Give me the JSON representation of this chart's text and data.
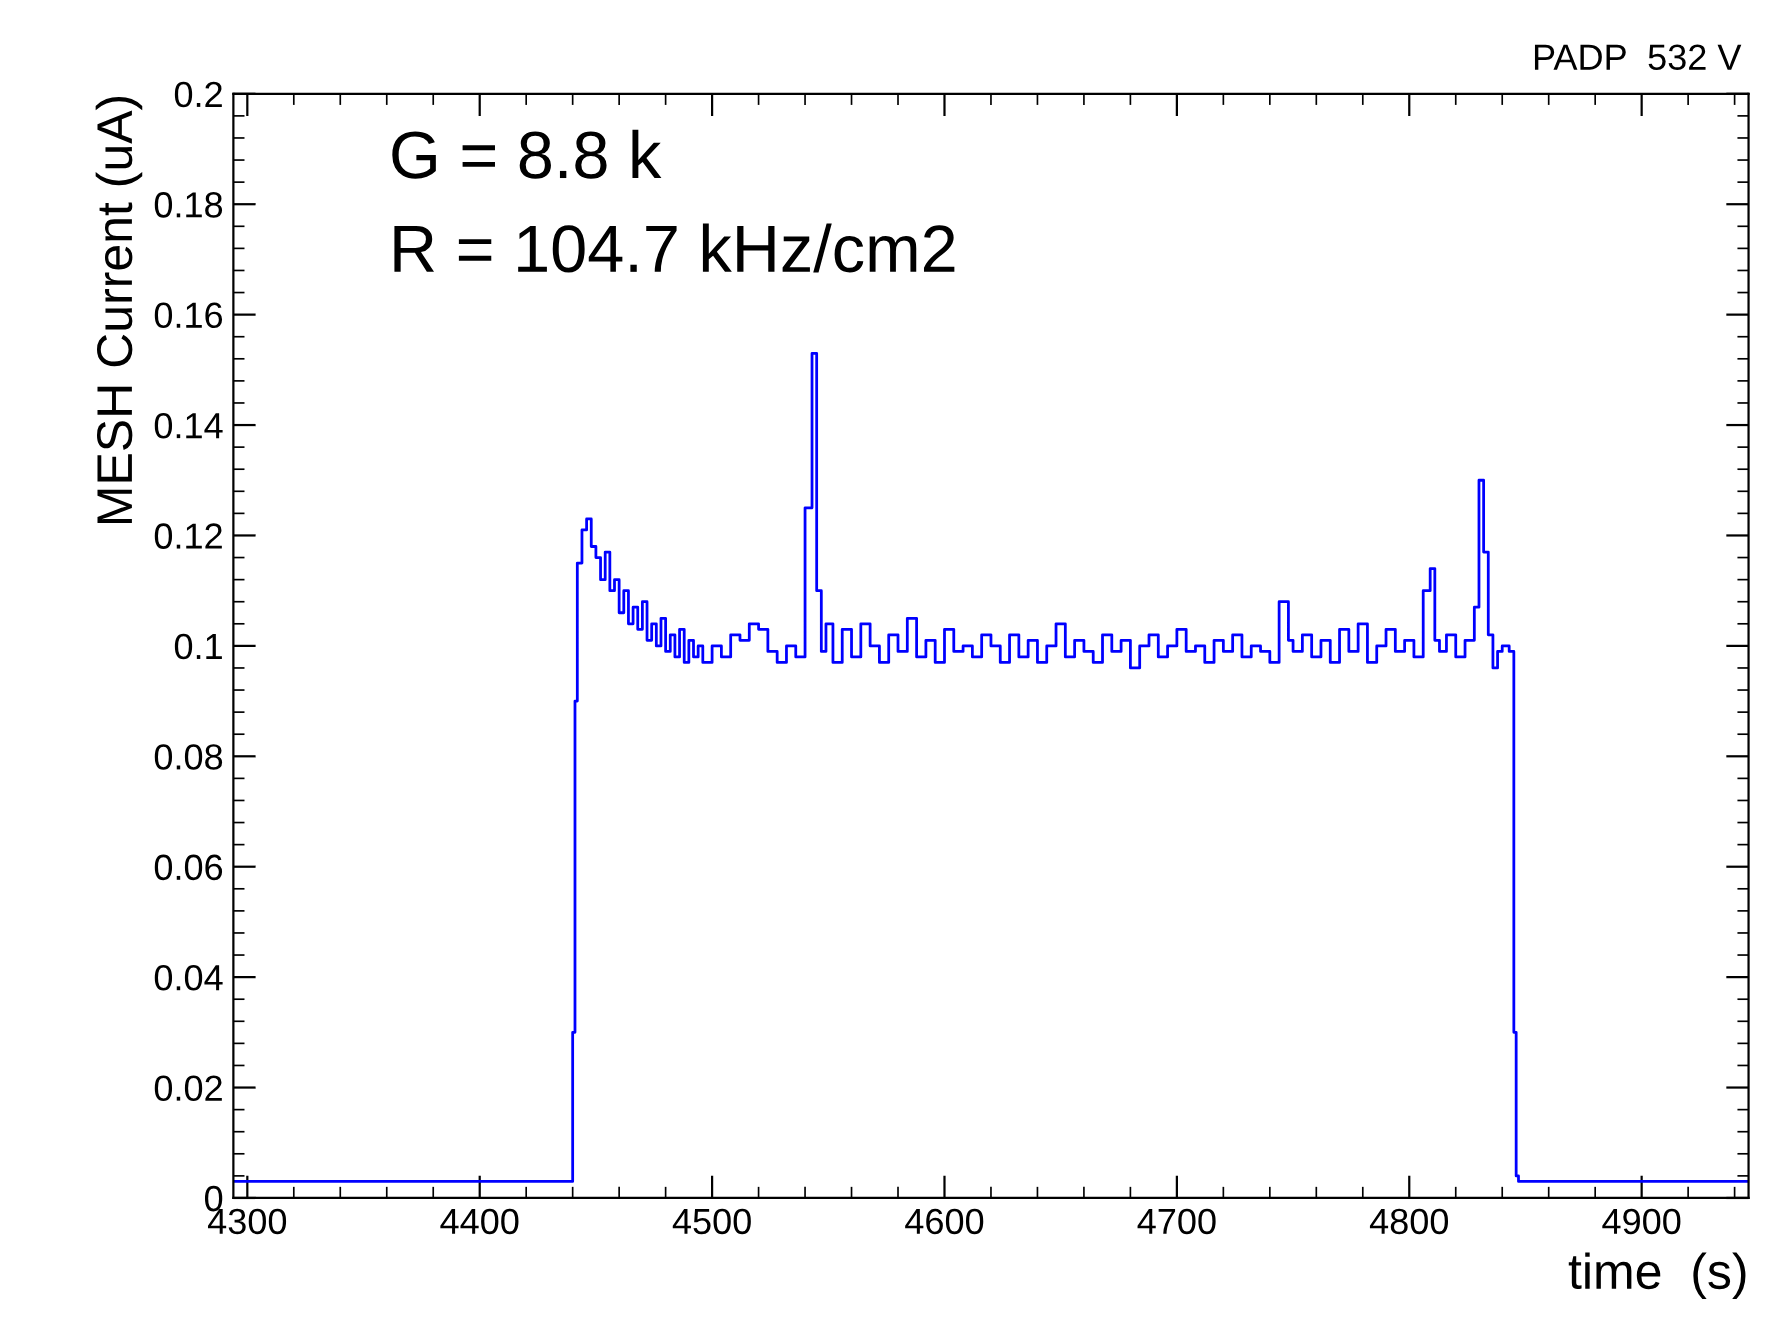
{
  "chart_data": {
    "type": "step",
    "xlabel": "time  (s)",
    "ylabel": "MESH Current (uA)",
    "annotations": [
      "PADP  532 V",
      "G = 8.8 k",
      "R = 104.7 kHz/cm2"
    ],
    "xlim": [
      4294,
      4946
    ],
    "xticks": [
      4300,
      4400,
      4500,
      4600,
      4700,
      4800,
      4900
    ],
    "ylim": [
      0,
      0.2
    ],
    "yticks": [
      0,
      0.02,
      0.04,
      0.06,
      0.08,
      0.1,
      0.12,
      0.14,
      0.16,
      0.18,
      0.2
    ],
    "grid": false,
    "legend": false,
    "series": [
      {
        "color": "#0000ff",
        "x": [
          4294,
          4440,
          4441,
          4442,
          4444,
          4446,
          4448,
          4450,
          4452,
          4454,
          4456,
          4458,
          4460,
          4462,
          4464,
          4466,
          4468,
          4470,
          4472,
          4474,
          4476,
          4478,
          4480,
          4482,
          4484,
          4486,
          4488,
          4490,
          4492,
          4494,
          4496,
          4500,
          4504,
          4508,
          4512,
          4516,
          4520,
          4524,
          4528,
          4532,
          4536,
          4540,
          4543,
          4545,
          4547,
          4549,
          4552,
          4556,
          4560,
          4564,
          4568,
          4572,
          4576,
          4580,
          4584,
          4588,
          4592,
          4596,
          4600,
          4604,
          4608,
          4612,
          4616,
          4620,
          4624,
          4628,
          4632,
          4636,
          4640,
          4644,
          4648,
          4652,
          4656,
          4660,
          4664,
          4668,
          4672,
          4676,
          4680,
          4684,
          4688,
          4692,
          4696,
          4700,
          4704,
          4708,
          4712,
          4716,
          4720,
          4724,
          4728,
          4732,
          4736,
          4740,
          4744,
          4748,
          4750,
          4754,
          4758,
          4762,
          4766,
          4770,
          4774,
          4778,
          4782,
          4786,
          4790,
          4794,
          4798,
          4802,
          4806,
          4809,
          4811,
          4813,
          4816,
          4820,
          4824,
          4828,
          4830,
          4832,
          4834,
          4836,
          4838,
          4840,
          4843,
          4845,
          4846,
          4847,
          4946
        ],
        "values": [
          0.003,
          0.03,
          0.09,
          0.115,
          0.121,
          0.123,
          0.118,
          0.116,
          0.112,
          0.117,
          0.11,
          0.112,
          0.106,
          0.11,
          0.104,
          0.107,
          0.103,
          0.108,
          0.101,
          0.104,
          0.1,
          0.105,
          0.099,
          0.102,
          0.098,
          0.103,
          0.097,
          0.101,
          0.098,
          0.1,
          0.097,
          0.1,
          0.098,
          0.102,
          0.101,
          0.104,
          0.103,
          0.099,
          0.097,
          0.1,
          0.098,
          0.125,
          0.153,
          0.11,
          0.099,
          0.104,
          0.097,
          0.103,
          0.098,
          0.104,
          0.1,
          0.097,
          0.102,
          0.099,
          0.105,
          0.098,
          0.101,
          0.097,
          0.103,
          0.099,
          0.1,
          0.098,
          0.102,
          0.1,
          0.097,
          0.102,
          0.098,
          0.101,
          0.097,
          0.1,
          0.104,
          0.098,
          0.101,
          0.099,
          0.097,
          0.102,
          0.099,
          0.101,
          0.096,
          0.1,
          0.102,
          0.098,
          0.1,
          0.103,
          0.099,
          0.1,
          0.097,
          0.101,
          0.099,
          0.102,
          0.098,
          0.1,
          0.099,
          0.097,
          0.108,
          0.101,
          0.099,
          0.102,
          0.098,
          0.101,
          0.097,
          0.103,
          0.099,
          0.104,
          0.097,
          0.1,
          0.103,
          0.099,
          0.101,
          0.098,
          0.11,
          0.114,
          0.101,
          0.099,
          0.102,
          0.098,
          0.101,
          0.107,
          0.13,
          0.117,
          0.102,
          0.096,
          0.099,
          0.1,
          0.099,
          0.03,
          0.004,
          0.003,
          0.003
        ]
      }
    ]
  }
}
